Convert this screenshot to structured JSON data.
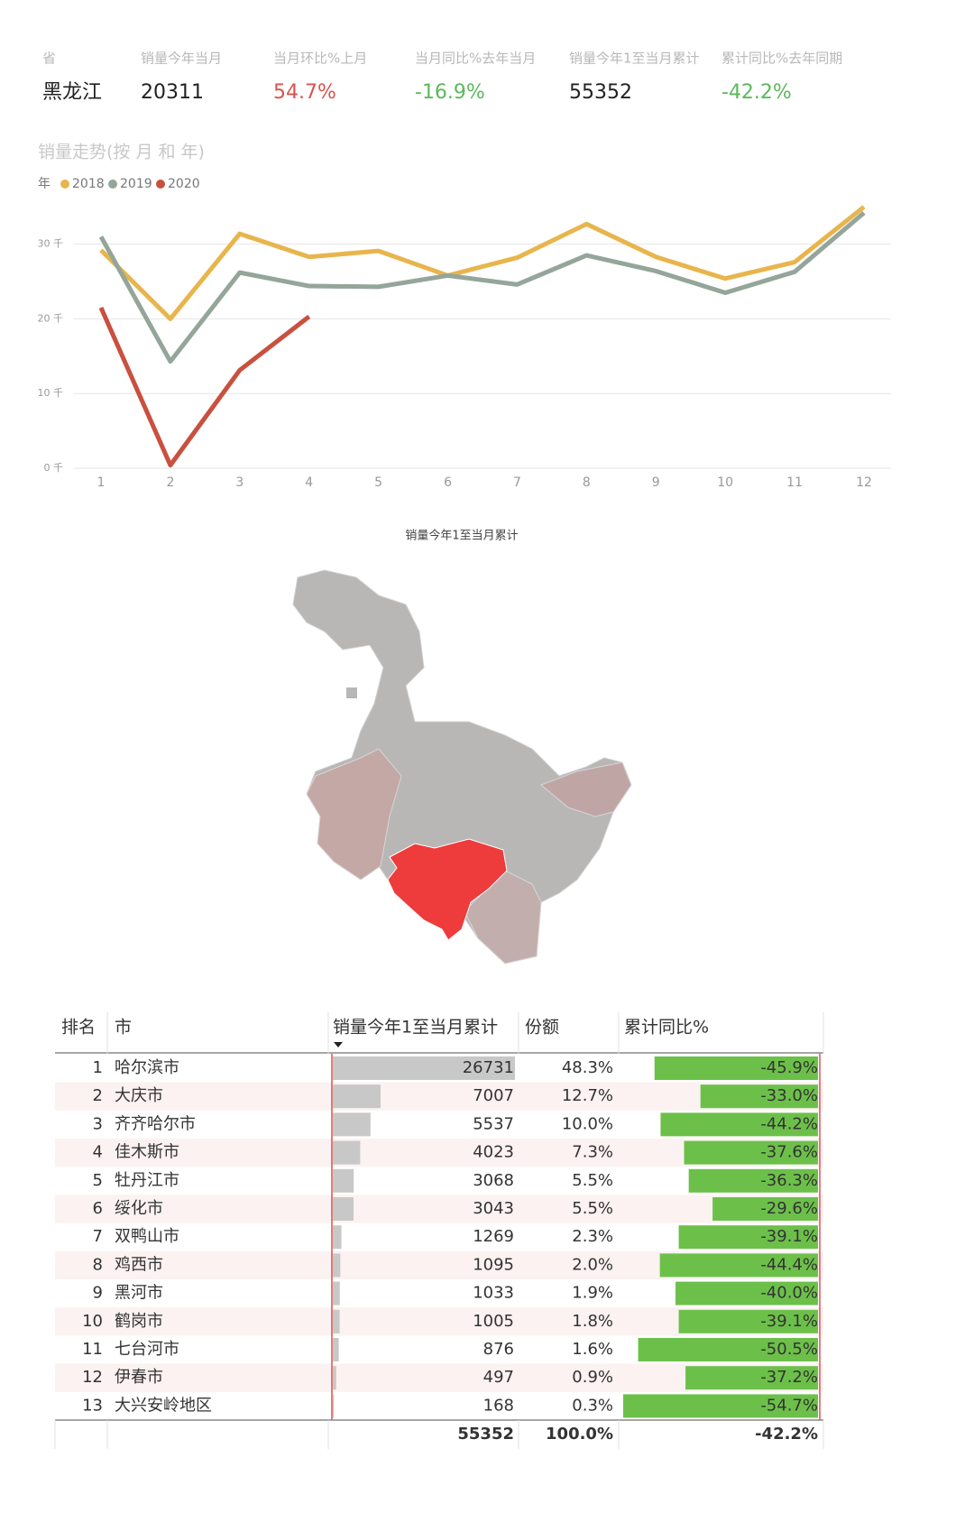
{
  "kpis": [
    {
      "label": "省",
      "value": "黑龙江",
      "color": "#222222"
    },
    {
      "label": "销量今年当月",
      "value": 20311,
      "color": "#222222"
    },
    {
      "label": "当月环比%上月",
      "value": "54.7%",
      "color": "#d9534f"
    },
    {
      "label": "当月同比%去年当月",
      "value": "-16.9%",
      "color": "#5cb85c"
    },
    {
      "label": "销量今年1至当月累计",
      "value": 55352,
      "color": "#222222"
    },
    {
      "label": "累计同比%去年同期",
      "value": "-42.2%",
      "color": "#5cb85c"
    }
  ],
  "chart_data": {
    "type": "line",
    "title": "销量走势(按 月 和 年)",
    "legend_title": "年",
    "categories": [
      "1",
      "2",
      "3",
      "4",
      "5",
      "6",
      "7",
      "8",
      "9",
      "10",
      "11",
      "12"
    ],
    "series": [
      {
        "name": "2018",
        "color": "#e8b54d",
        "values": [
          29200,
          20000,
          31400,
          28300,
          29100,
          25800,
          28200,
          32700,
          28300,
          25400,
          27600,
          35000
        ]
      },
      {
        "name": "2019",
        "color": "#94a59a",
        "values": [
          31000,
          14300,
          26200,
          24400,
          24300,
          25800,
          24600,
          28500,
          26400,
          23500,
          26300,
          34200
        ]
      },
      {
        "name": "2020",
        "color": "#c9503f",
        "values": [
          21500,
          412,
          13129,
          20311,
          null,
          null,
          null,
          null,
          null,
          null,
          null,
          null
        ]
      }
    ],
    "ylim": [
      0,
      36000
    ],
    "yticks": [
      {
        "value": 0,
        "label": "0 千"
      },
      {
        "value": 10000,
        "label": "10 千"
      },
      {
        "value": 20000,
        "label": "20 千"
      },
      {
        "value": 30000,
        "label": "30 千"
      }
    ],
    "grid": true
  },
  "map": {
    "title": "销量今年1至当月累计"
  },
  "table": {
    "headers": [
      "排名",
      "市",
      "销量今年1至当月累计",
      "份额",
      "累计同比%"
    ],
    "rows": [
      {
        "rank": 1,
        "city": "哈尔滨市",
        "sales": 26731,
        "share": "48.3%",
        "yoy": -45.9,
        "yoy_label": "-45.9%"
      },
      {
        "rank": 2,
        "city": "大庆市",
        "sales": 7007,
        "share": "12.7%",
        "yoy": -33.0,
        "yoy_label": "-33.0%"
      },
      {
        "rank": 3,
        "city": "齐齐哈尔市",
        "sales": 5537,
        "share": "10.0%",
        "yoy": -44.2,
        "yoy_label": "-44.2%"
      },
      {
        "rank": 4,
        "city": "佳木斯市",
        "sales": 4023,
        "share": "7.3%",
        "yoy": -37.6,
        "yoy_label": "-37.6%"
      },
      {
        "rank": 5,
        "city": "牡丹江市",
        "sales": 3068,
        "share": "5.5%",
        "yoy": -36.3,
        "yoy_label": "-36.3%"
      },
      {
        "rank": 6,
        "city": "绥化市",
        "sales": 3043,
        "share": "5.5%",
        "yoy": -29.6,
        "yoy_label": "-29.6%"
      },
      {
        "rank": 7,
        "city": "双鸭山市",
        "sales": 1269,
        "share": "2.3%",
        "yoy": -39.1,
        "yoy_label": "-39.1%"
      },
      {
        "rank": 8,
        "city": "鸡西市",
        "sales": 1095,
        "share": "2.0%",
        "yoy": -44.4,
        "yoy_label": "-44.4%"
      },
      {
        "rank": 9,
        "city": "黑河市",
        "sales": 1033,
        "share": "1.9%",
        "yoy": -40.0,
        "yoy_label": "-40.0%"
      },
      {
        "rank": 10,
        "city": "鹤岗市",
        "sales": 1005,
        "share": "1.8%",
        "yoy": -39.1,
        "yoy_label": "-39.1%"
      },
      {
        "rank": 11,
        "city": "七台河市",
        "sales": 876,
        "share": "1.6%",
        "yoy": -50.5,
        "yoy_label": "-50.5%"
      },
      {
        "rank": 12,
        "city": "伊春市",
        "sales": 497,
        "share": "0.9%",
        "yoy": -37.2,
        "yoy_label": "-37.2%"
      },
      {
        "rank": 13,
        "city": "大兴安岭地区",
        "sales": 168,
        "share": "0.3%",
        "yoy": -54.7,
        "yoy_label": "-54.7%"
      }
    ],
    "total": {
      "sales": 55352,
      "share": "100.0%",
      "yoy": "-42.2%"
    }
  }
}
